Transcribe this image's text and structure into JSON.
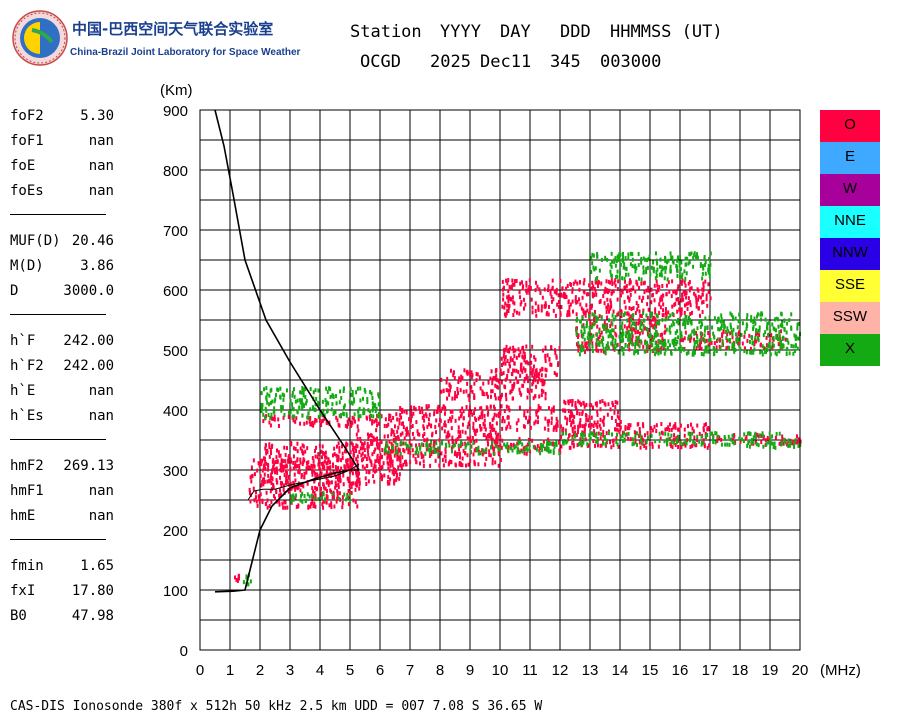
{
  "logo": {
    "title_cn": "中国-巴西空间天气联合实验室",
    "title_en": "China-Brazil Joint Laboratory for Space Weather"
  },
  "header": {
    "labels": [
      "Station",
      "YYYY",
      "DAY",
      "DDD",
      "HHMMSS (UT)"
    ],
    "values": [
      "OCGD",
      "2025",
      "Dec11",
      "345",
      "003000"
    ]
  },
  "params": [
    {
      "name": "foF2",
      "value": "5.30"
    },
    {
      "name": "foF1",
      "value": "nan"
    },
    {
      "name": "foE",
      "value": "nan"
    },
    {
      "name": "foEs",
      "value": "nan"
    },
    {
      "separator": true
    },
    {
      "name": "MUF(D)",
      "value": "20.46"
    },
    {
      "name": "M(D)",
      "value": "3.86"
    },
    {
      "name": "D",
      "value": "3000.0"
    },
    {
      "separator": true
    },
    {
      "name": "h`F",
      "value": "242.00"
    },
    {
      "name": "h`F2",
      "value": "242.00"
    },
    {
      "name": "h`E",
      "value": "nan"
    },
    {
      "name": "h`Es",
      "value": "nan"
    },
    {
      "separator": true
    },
    {
      "name": "hmF2",
      "value": "269.13"
    },
    {
      "name": "hmF1",
      "value": "nan"
    },
    {
      "name": "hmE",
      "value": "nan"
    },
    {
      "separator": true
    },
    {
      "name": "fmin",
      "value": "1.65"
    },
    {
      "name": "fxI",
      "value": "17.80"
    },
    {
      "name": "B0",
      "value": "47.98"
    }
  ],
  "legend": [
    {
      "label": "O",
      "color": "#ff0040"
    },
    {
      "label": "E",
      "color": "#3fa9ff"
    },
    {
      "label": "W",
      "color": "#a8009a"
    },
    {
      "label": "NNE",
      "color": "#1affff"
    },
    {
      "label": "NNW",
      "color": "#2a00e6"
    },
    {
      "label": "SSE",
      "color": "#ffff33"
    },
    {
      "label": "SSW",
      "color": "#ffb3a8"
    },
    {
      "label": "X",
      "color": "#14aa14"
    }
  ],
  "footer": "CAS-DIS Ionosonde 380f x 512h 50 kHz 2.5 km UDD = 007 7.08 S 36.65 W",
  "chart_data": {
    "type": "scatter",
    "xlabel": "(MHz)",
    "ylabel": "(Km)",
    "xlim": [
      0,
      20
    ],
    "ylim": [
      0,
      900
    ],
    "x_ticks": [
      0,
      1,
      2,
      3,
      4,
      5,
      6,
      7,
      8,
      9,
      10,
      11,
      12,
      13,
      14,
      15,
      16,
      17,
      18,
      19,
      20
    ],
    "y_ticks": [
      0,
      100,
      200,
      300,
      400,
      500,
      600,
      700,
      800,
      900
    ],
    "grid": true,
    "series": [
      {
        "color": "#ff0040",
        "clusters": [
          {
            "x": [
              1.6,
              5.3
            ],
            "y": [
              240,
              320
            ]
          },
          {
            "x": [
              2.0,
              6.8
            ],
            "y": [
              280,
              350
            ]
          },
          {
            "x": [
              5.0,
              10.0
            ],
            "y": [
              310,
              370
            ]
          },
          {
            "x": [
              9.5,
              12.0
            ],
            "y": [
              330,
              355
            ]
          },
          {
            "x": [
              12.0,
              17.0
            ],
            "y": [
              340,
              380
            ]
          },
          {
            "x": [
              17.0,
              20.0
            ],
            "y": [
              345,
              362
            ]
          },
          {
            "x": [
              2.0,
              6.5
            ],
            "y": [
              375,
              395
            ]
          },
          {
            "x": [
              6.5,
              12.0
            ],
            "y": [
              370,
              410
            ]
          },
          {
            "x": [
              12.0,
              14.0
            ],
            "y": [
              375,
              420
            ]
          },
          {
            "x": [
              8.0,
              11.5
            ],
            "y": [
              420,
              470
            ]
          },
          {
            "x": [
              10.0,
              12.0
            ],
            "y": [
              460,
              510
            ]
          },
          {
            "x": [
              12.5,
              15.5
            ],
            "y": [
              500,
              560
            ]
          },
          {
            "x": [
              16.0,
              19.5
            ],
            "y": [
              505,
              535
            ]
          },
          {
            "x": [
              10.0,
              17.0
            ],
            "y": [
              560,
              620
            ]
          },
          {
            "x": [
              1.1,
              1.3
            ],
            "y": [
              115,
              130
            ]
          }
        ]
      },
      {
        "color": "#14aa14",
        "clusters": [
          {
            "x": [
              3.0,
              5.0
            ],
            "y": [
              250,
              265
            ]
          },
          {
            "x": [
              2.0,
              6.0
            ],
            "y": [
              390,
              440
            ]
          },
          {
            "x": [
              6.0,
              12.0
            ],
            "y": [
              330,
              350
            ]
          },
          {
            "x": [
              12.0,
              18.0
            ],
            "y": [
              345,
              365
            ]
          },
          {
            "x": [
              18.0,
              20.0
            ],
            "y": [
              340,
              365
            ]
          },
          {
            "x": [
              12.5,
              20.0
            ],
            "y": [
              495,
              565
            ]
          },
          {
            "x": [
              1.4,
              1.7
            ],
            "y": [
              110,
              130
            ]
          },
          {
            "x": [
              13.0,
              17.0
            ],
            "y": [
              620,
              665
            ]
          }
        ]
      }
    ],
    "profile": {
      "x": [
        0.5,
        1.1,
        1.5,
        1.7,
        2.0,
        2.4,
        3.0,
        3.8,
        4.5,
        5.0,
        5.3
      ],
      "y": [
        97,
        98,
        100,
        140,
        200,
        240,
        270,
        285,
        295,
        300,
        300
      ]
    },
    "virtual_trace": {
      "x": [
        1.6,
        1.8,
        2.1,
        2.5,
        3.0,
        3.5,
        4.0,
        4.5,
        5.0,
        5.3
      ],
      "y": [
        250,
        265,
        268,
        268,
        275,
        280,
        285,
        290,
        300,
        310
      ]
    },
    "profile_extension": {
      "x": [
        0.5,
        0.8,
        1.1,
        1.5,
        2.2,
        3.0,
        4.0,
        4.8,
        5.3
      ],
      "y": [
        900,
        840,
        760,
        650,
        550,
        480,
        400,
        340,
        300
      ]
    }
  }
}
